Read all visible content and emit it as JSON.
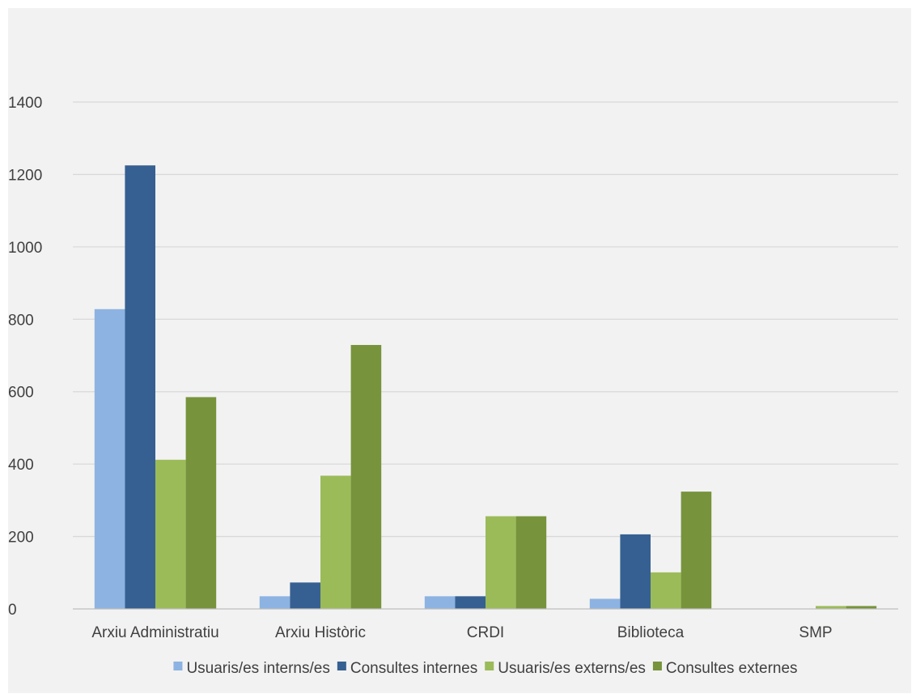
{
  "chart_data": {
    "type": "bar",
    "categories": [
      "Arxiu Administratiu",
      "Arxiu Històric",
      "CRDI",
      "Biblioteca",
      "SMP"
    ],
    "series": [
      {
        "name": "Usuaris/es interns/es",
        "values": [
          828,
          35,
          35,
          28,
          0
        ],
        "color": "#8db3e2"
      },
      {
        "name": "Consultes internes",
        "values": [
          1225,
          73,
          35,
          206,
          0
        ],
        "color": "#366092"
      },
      {
        "name": "Usuaris/es externs/es",
        "values": [
          412,
          368,
          256,
          101,
          8
        ],
        "color": "#9bbb59"
      },
      {
        "name": "Consultes externes",
        "values": [
          585,
          729,
          256,
          324,
          8
        ],
        "color": "#77933c"
      }
    ],
    "ylim": [
      0,
      1400
    ],
    "yticks": [
      0,
      200,
      400,
      600,
      800,
      1000,
      1200,
      1400
    ],
    "grid": true,
    "legend_position": "bottom",
    "title": "",
    "xlabel": "",
    "ylabel": ""
  },
  "colors": {
    "background": "#f2f2f2",
    "gridline": "#d9d9d9",
    "axis": "#bfbfbf",
    "text": "#404040"
  }
}
